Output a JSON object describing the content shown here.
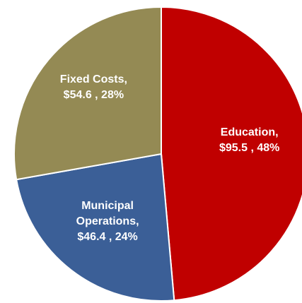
{
  "chart_data": {
    "type": "pie",
    "categories": [
      "Education,",
      "Municipal Operations,",
      "Fixed Costs,"
    ],
    "values": [
      95.5,
      46.4,
      54.6
    ],
    "value_labels": [
      "$95.5 , 48%",
      "$46.4 , 24%",
      "$54.6 , 28%"
    ],
    "colors": [
      "#c00000",
      "#3b5f97",
      "#948a54"
    ]
  }
}
